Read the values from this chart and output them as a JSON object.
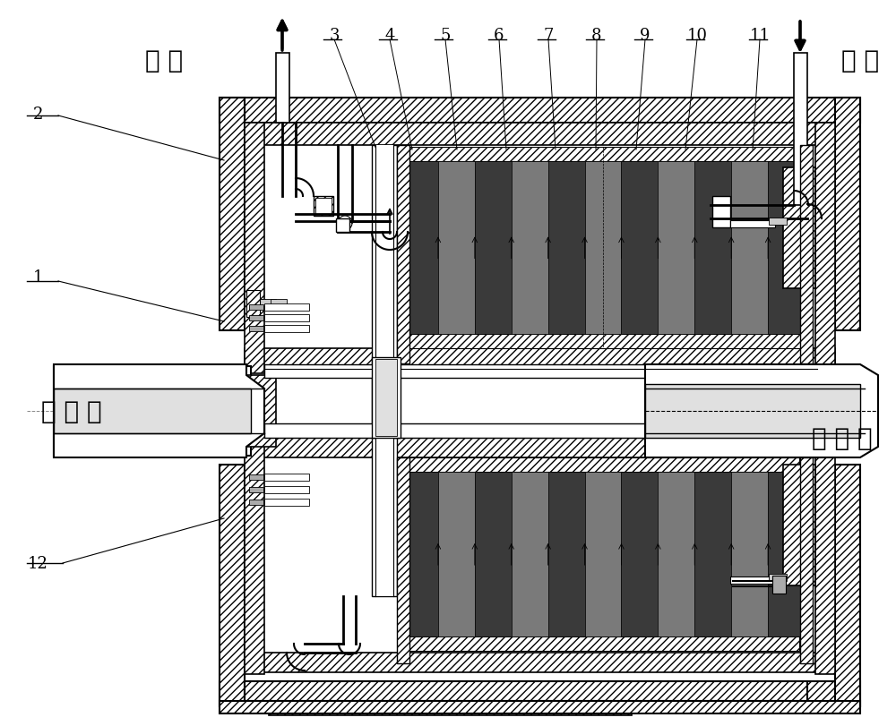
{
  "background_color": "#ffffff",
  "line_color": "#000000",
  "labels": {
    "out_water": "出 水",
    "in_water": "进 水",
    "input_end": "输 入 端",
    "output_end": "输 出 端",
    "num_top": [
      "3",
      "4",
      "5",
      "6",
      "7",
      "8",
      "9",
      "10",
      "11"
    ],
    "num_side": [
      "2",
      "1",
      "12"
    ]
  }
}
